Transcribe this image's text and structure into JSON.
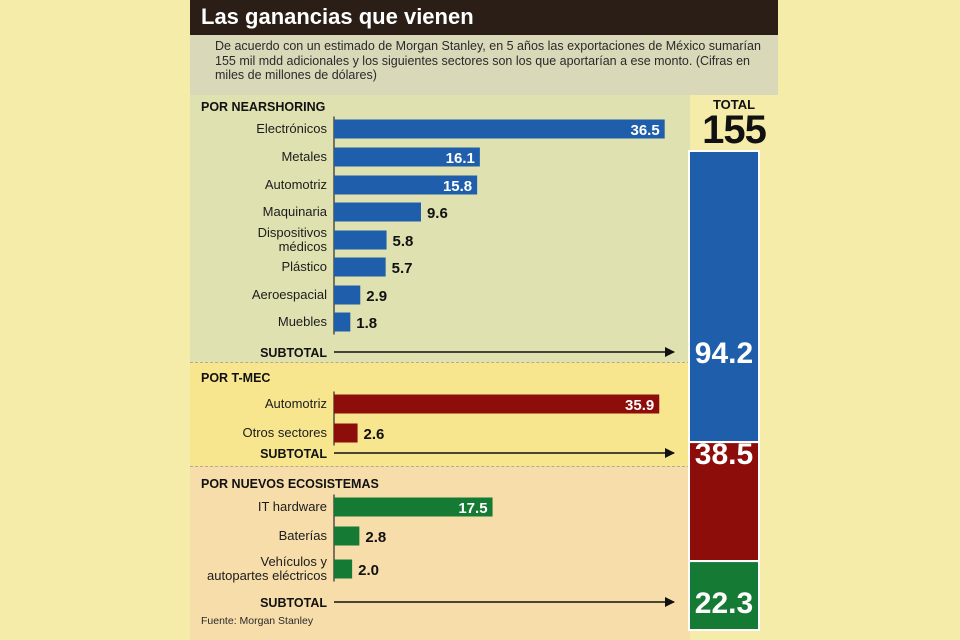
{
  "header": {
    "title": "Las ganancias que vienen",
    "subtitle": "De acuerdo con un estimado de Morgan Stanley, en 5 años las exportaciones de México sumarían 155 mil mdd adicionales y los siguientes sectores son los que aportarían a ese monto.  (Cifras en miles de millones de dólares)"
  },
  "colors": {
    "nearshoring": "#1f5eaa",
    "tmec": "#8c0d0a",
    "ecosistemas": "#157a33",
    "header_bg": "#2b1e17"
  },
  "chart_data": {
    "type": "bar",
    "orientation": "horizontal",
    "subtotal_label": "SUBTOTAL",
    "groups": [
      {
        "name": "POR NEARSHORING",
        "color": "#1f5eaa",
        "categories": [
          "Electrónicos",
          "Metales",
          "Automotriz",
          "Maquinaria",
          "Dispositivos médicos",
          "Plástico",
          "Aeroespacial",
          "Muebles"
        ],
        "values": [
          36.5,
          16.1,
          15.8,
          9.6,
          5.8,
          5.7,
          2.9,
          1.8
        ],
        "subtotal": 94.2
      },
      {
        "name": "POR T-MEC",
        "color": "#8c0d0a",
        "categories": [
          "Automotriz",
          "Otros sectores"
        ],
        "values": [
          35.9,
          2.6
        ],
        "subtotal": 38.5
      },
      {
        "name": "POR NUEVOS ECOSISTEMAS",
        "color": "#157a33",
        "categories": [
          "IT hardware",
          "Baterías",
          "Vehículos y autopartes eléctricos"
        ],
        "values": [
          17.5,
          2.8,
          2.0
        ],
        "subtotal": 22.3
      }
    ],
    "total_label": "TOTAL",
    "total": 155
  },
  "source": "Fuente: Morgan Stanley"
}
